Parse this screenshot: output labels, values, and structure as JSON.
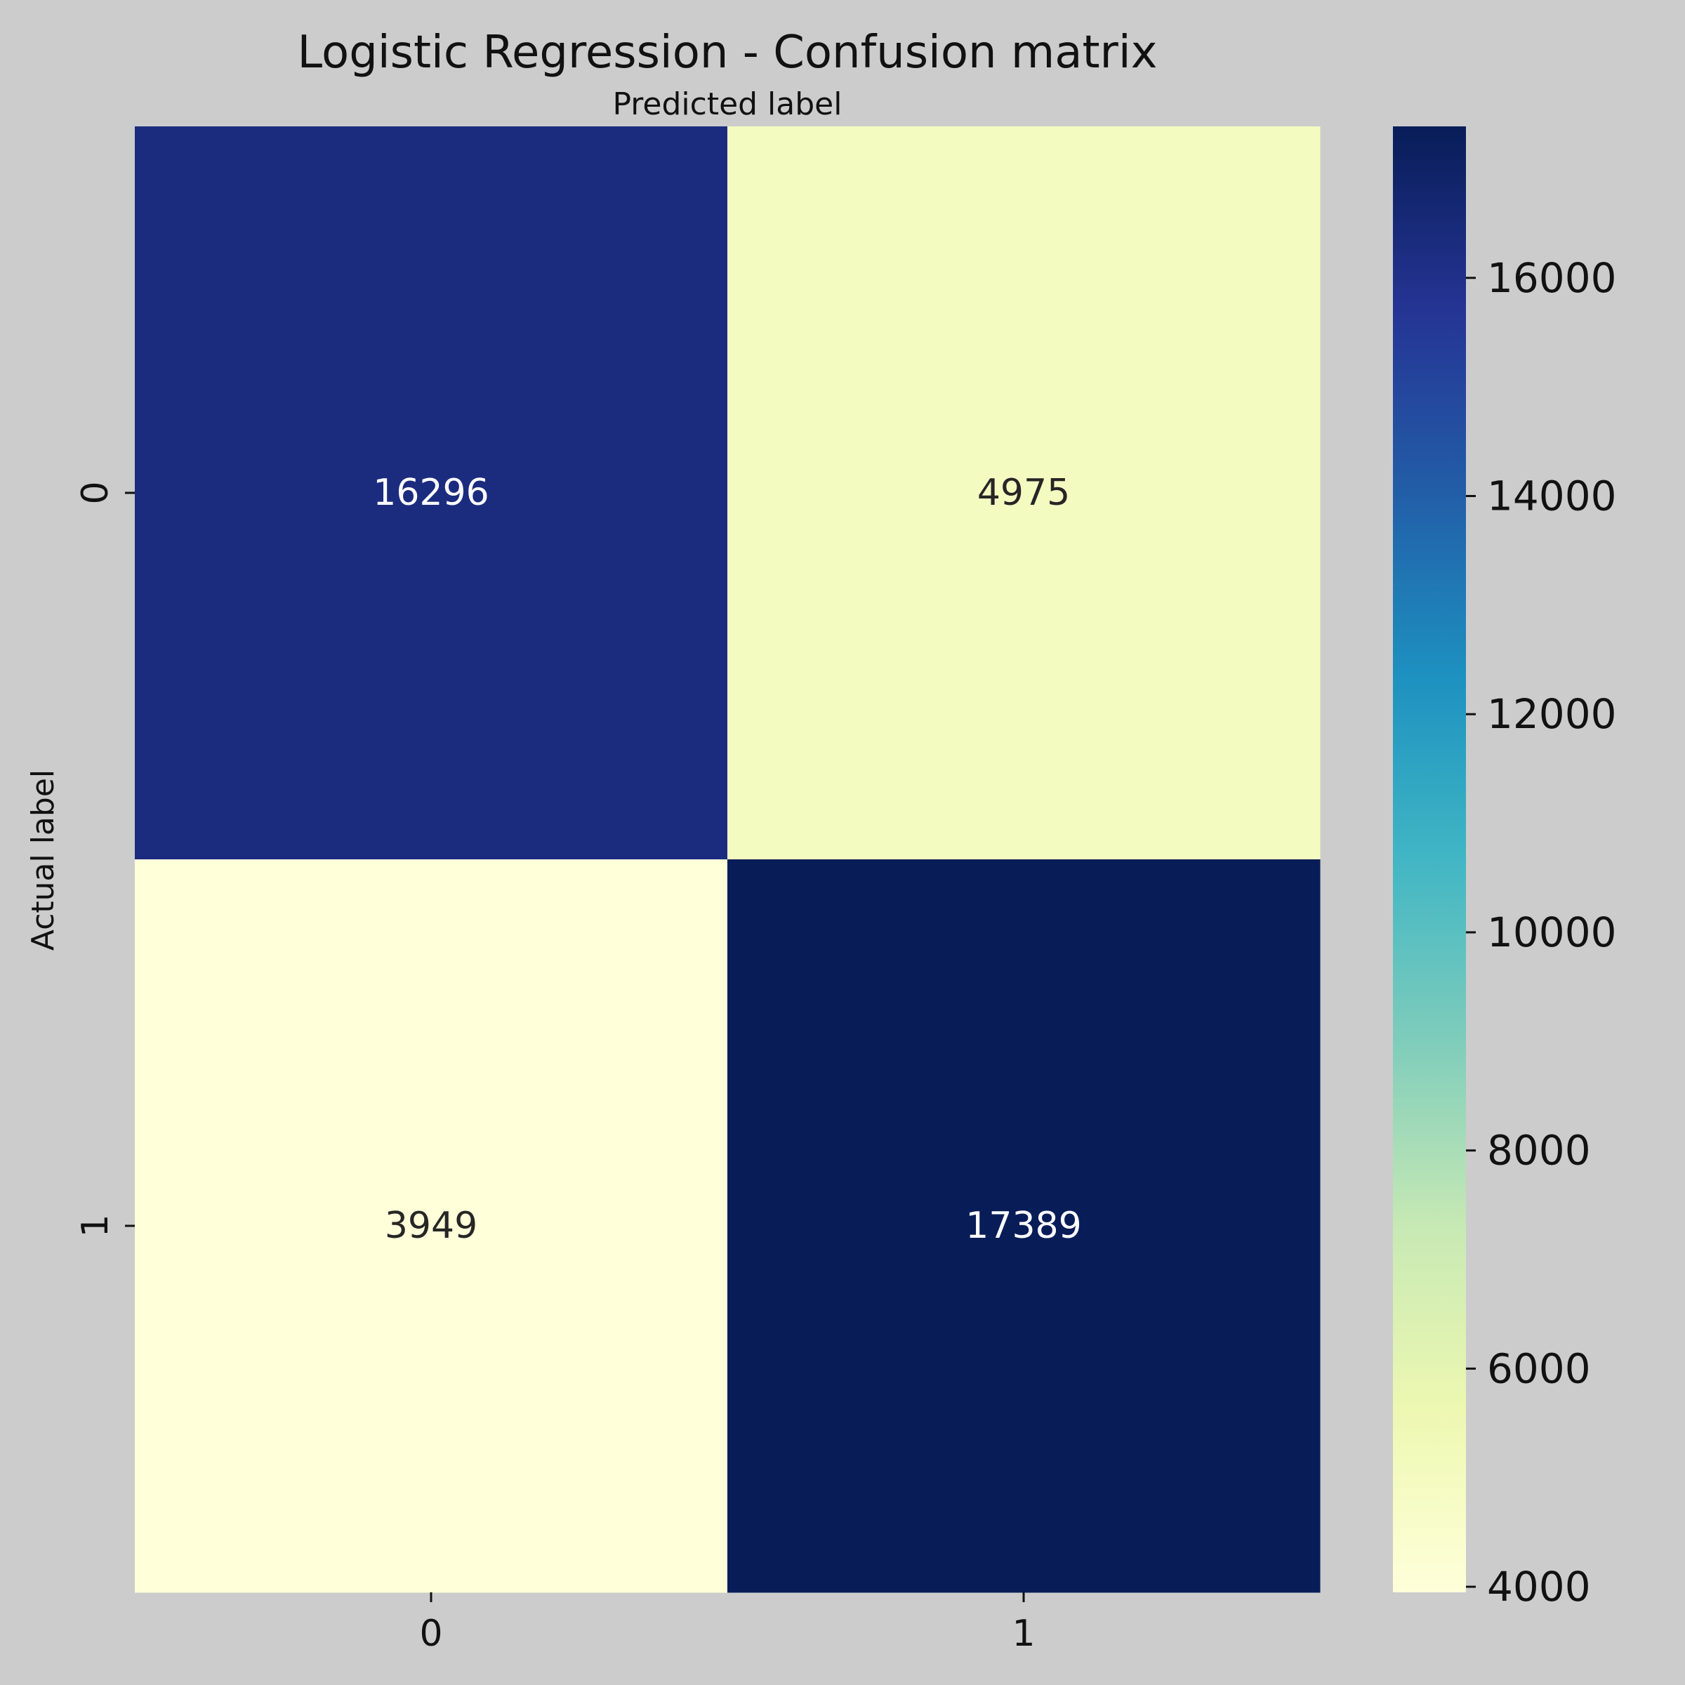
{
  "chart_data": {
    "type": "heatmap",
    "title": "Logistic Regression - Confusion matrix",
    "xlabel": "Predicted label",
    "ylabel": "Actual label",
    "x_categories": [
      "0",
      "1"
    ],
    "y_categories": [
      "0",
      "1"
    ],
    "values": [
      [
        16296,
        4975
      ],
      [
        3949,
        17389
      ]
    ],
    "colormap": "YlGnBu",
    "colorbar": {
      "range": [
        3949,
        17389
      ],
      "ticks": [
        4000,
        6000,
        8000,
        10000,
        12000,
        14000,
        16000
      ]
    },
    "annotation_colors": {
      "on_dark": "#ffffff",
      "on_light": "#262626"
    },
    "background_color": "#cccccc",
    "grid": false,
    "legend": "colorbar-right"
  }
}
